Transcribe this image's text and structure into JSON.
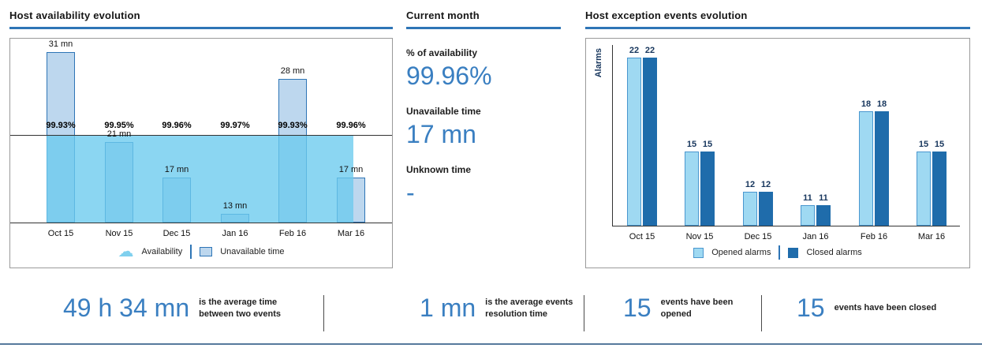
{
  "colors": {
    "accent": "#2e75b6",
    "stat_blue": "#3a7fc1",
    "area": "#6acbee",
    "bar_light": "#bdd7ee",
    "opened": "#9fd9f2",
    "closed": "#1f6cab",
    "navy": "#17365d"
  },
  "panels": {
    "availability": {
      "title": "Host availability evolution"
    },
    "current_month": {
      "title": "Current month",
      "stats": [
        {
          "label": "% of availability",
          "value": "99.96%"
        },
        {
          "label": "Unavailable time",
          "value": "17 mn"
        },
        {
          "label": "Unknown time",
          "value": "-"
        }
      ]
    },
    "exceptions": {
      "title": "Host exception events evolution"
    }
  },
  "chart_data": [
    {
      "type": "bar",
      "title": "Host availability evolution",
      "categories": [
        "Oct 15",
        "Nov 15",
        "Dec 15",
        "Jan 16",
        "Feb 16",
        "Mar 16"
      ],
      "series": [
        {
          "name": "Unavailable time",
          "render": "bar",
          "unit": "mn",
          "values": [
            31,
            21,
            17,
            13,
            28,
            17
          ],
          "labels": [
            "31 mn",
            "21 mn",
            "17 mn",
            "13 mn",
            "28 mn",
            "17 mn"
          ]
        },
        {
          "name": "Availability",
          "render": "area",
          "unit": "%",
          "values": [
            99.93,
            99.95,
            99.96,
            99.97,
            99.93,
            99.96
          ],
          "labels": [
            "99.93%",
            "99.95%",
            "99.96%",
            "99.97%",
            "99.93%",
            "99.96%"
          ]
        }
      ],
      "bar_axis_range": [
        12,
        32
      ],
      "grid": false,
      "legend_position": "bottom-inside"
    },
    {
      "type": "bar",
      "title": "Host exception events evolution",
      "ylabel": "Alarms",
      "categories": [
        "Oct 15",
        "Nov 15",
        "Dec 15",
        "Jan 16",
        "Feb 16",
        "Mar 16"
      ],
      "series": [
        {
          "name": "Opened alarms",
          "values": [
            22,
            15,
            12,
            11,
            18,
            15
          ]
        },
        {
          "name": "Closed alarms",
          "values": [
            22,
            15,
            12,
            11,
            18,
            15
          ]
        }
      ],
      "bar_axis_range": [
        9.5,
        23
      ],
      "grid": false,
      "legend_position": "bottom-inside"
    }
  ],
  "kpis": [
    {
      "value": "49 h 34 mn",
      "text": "is the average time between two events"
    },
    {
      "value": "1 mn",
      "text": "is the average events resolution time"
    },
    {
      "value": "15",
      "text": "events have been opened"
    },
    {
      "value": "15",
      "text": "events have been closed"
    }
  ]
}
